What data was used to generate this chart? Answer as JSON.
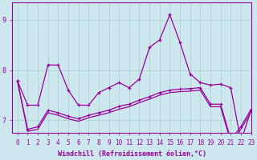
{
  "xlabel": "Windchill (Refroidissement éolien,°C)",
  "background_color": "#cce8ee",
  "line_color": "#990099",
  "xlim": [
    -0.5,
    23
  ],
  "ylim": [
    6.75,
    9.35
  ],
  "yticks": [
    7,
    8,
    9
  ],
  "xticks": [
    0,
    1,
    2,
    3,
    4,
    5,
    6,
    7,
    8,
    9,
    10,
    11,
    12,
    13,
    14,
    15,
    16,
    17,
    18,
    19,
    20,
    21,
    22,
    23
  ],
  "series1": [
    7.78,
    7.3,
    7.3,
    8.1,
    8.1,
    7.6,
    7.3,
    7.3,
    7.55,
    7.65,
    7.75,
    7.65,
    7.82,
    8.45,
    8.6,
    9.1,
    8.55,
    7.92,
    7.75,
    7.7,
    7.72,
    7.65,
    6.58,
    7.2
  ],
  "series2": [
    7.78,
    6.82,
    6.87,
    7.2,
    7.15,
    7.08,
    7.03,
    7.1,
    7.15,
    7.2,
    7.28,
    7.32,
    7.4,
    7.47,
    7.55,
    7.6,
    7.62,
    7.63,
    7.65,
    7.32,
    7.32,
    6.62,
    6.87,
    7.22
  ],
  "series3": [
    7.78,
    6.78,
    6.82,
    7.15,
    7.1,
    7.03,
    6.98,
    7.05,
    7.1,
    7.15,
    7.22,
    7.27,
    7.35,
    7.42,
    7.5,
    7.55,
    7.57,
    7.58,
    7.6,
    7.27,
    7.27,
    6.57,
    6.82,
    7.17
  ],
  "font_size": 6,
  "tick_fontsize": 5.5,
  "grid_color": "#aacccc",
  "xlabel_fontsize": 6
}
